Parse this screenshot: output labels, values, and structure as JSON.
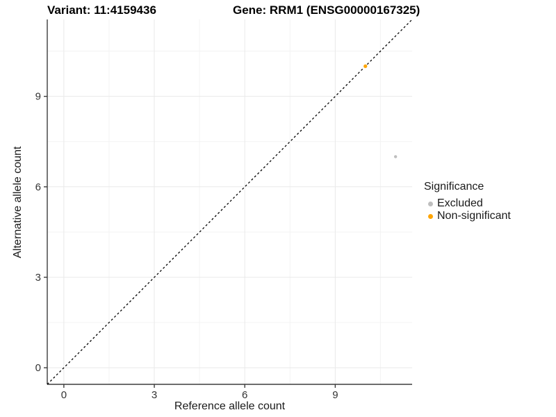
{
  "titles": {
    "variant": "Variant: 11:4159436",
    "gene": "Gene: RRM1 (ENSG00000167325)"
  },
  "chart_data": {
    "type": "scatter",
    "xlabel": "Reference allele count",
    "ylabel": "Alternative allele count",
    "xlim": [
      -0.55,
      11.55
    ],
    "ylim": [
      -0.55,
      11.55
    ],
    "xticks": [
      0,
      3,
      6,
      9
    ],
    "yticks": [
      0,
      3,
      6,
      9
    ],
    "x_minor_ticks": [
      1.5,
      4.5,
      7.5,
      10.5
    ],
    "y_minor_ticks": [
      1.5,
      4.5,
      7.5,
      10.5
    ],
    "grid": true,
    "identity_line": {
      "style": "dashed",
      "color": "#000000",
      "from": [
        -0.55,
        -0.55
      ],
      "to": [
        11.55,
        11.55
      ]
    },
    "series": [
      {
        "name": "Excluded",
        "color": "#BEBEBE",
        "radius": 2.2,
        "points": [
          {
            "x": 11,
            "y": 7
          }
        ]
      },
      {
        "name": "Non-significant",
        "color": "#FFA500",
        "radius": 2.6,
        "points": [
          {
            "x": 10,
            "y": 10
          }
        ]
      }
    ],
    "legend": {
      "title": "Significance",
      "position": "right",
      "entries": [
        {
          "label": "Excluded",
          "color": "#BEBEBE"
        },
        {
          "label": "Non-significant",
          "color": "#FFA500"
        }
      ]
    },
    "colors": {
      "axis_line": "#3c3c3c",
      "tick_mark": "#3c3c3c",
      "tick_label": "#333333",
      "grid_major": "#e9e9e9",
      "grid_minor": "#f3f3f3"
    }
  }
}
